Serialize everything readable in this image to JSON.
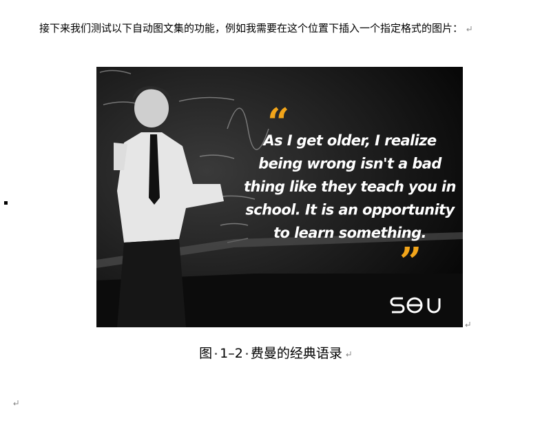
{
  "paragraph": "接下来我们测试以下自动图文集的功能，例如我需要在这个位置下插入一个指定格式的图片：",
  "figure": {
    "quote": {
      "open_mark": "“",
      "close_mark": "”",
      "lines": [
        "As I get older, I realize",
        "being wrong isn't a bad",
        "thing like they teach you in",
        "school. It is an opportunity",
        "to learn something."
      ]
    },
    "caption": {
      "label": "图",
      "number": "1–2",
      "text": "费曼的经典语录"
    }
  }
}
